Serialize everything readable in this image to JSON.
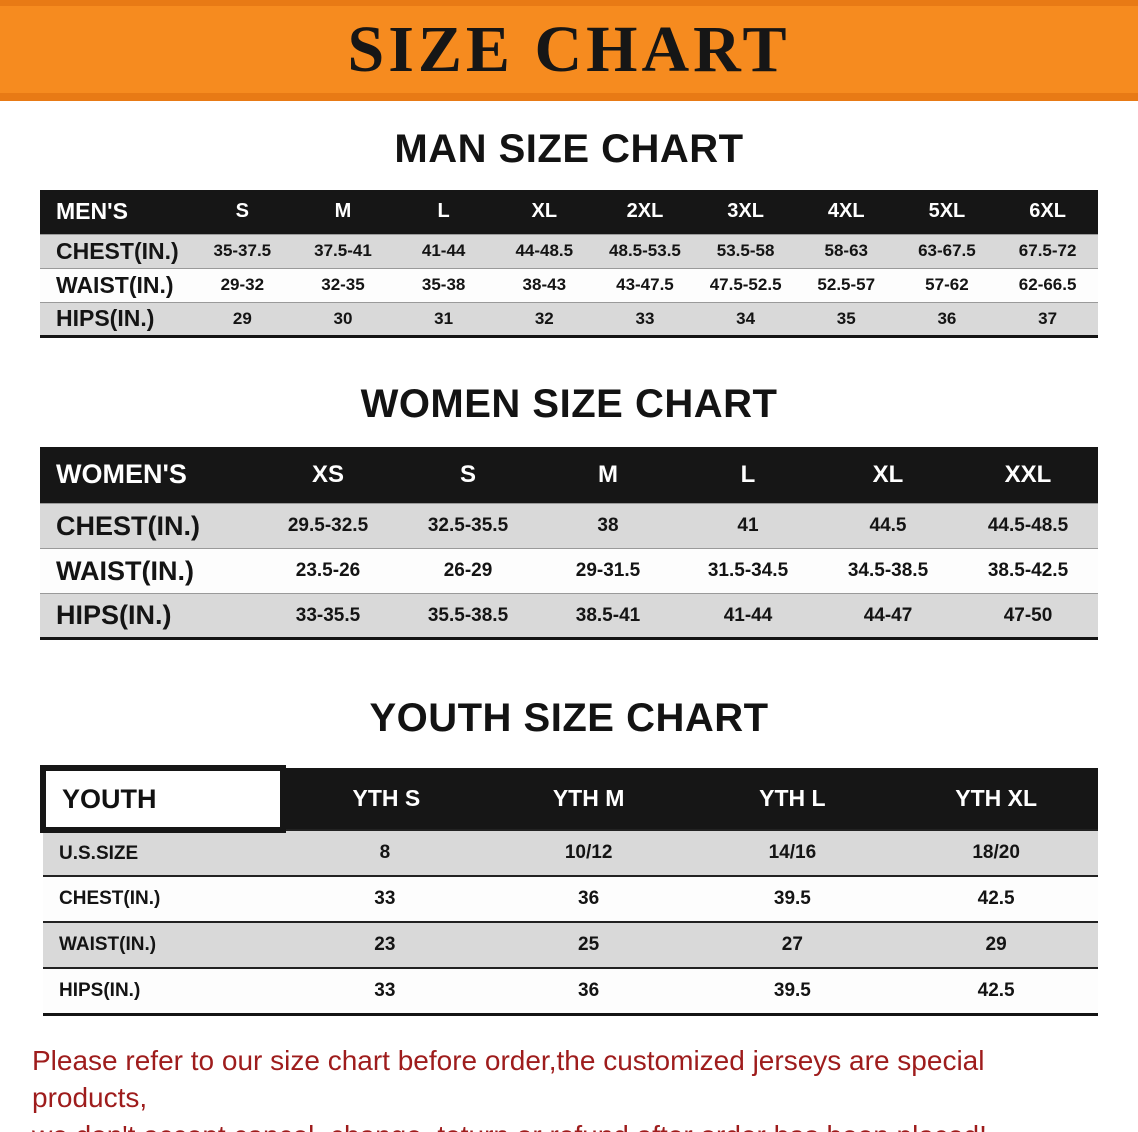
{
  "banner": {
    "title": "SIZE CHART"
  },
  "colors": {
    "banner_bg": "#f68b1f",
    "banner_edge": "#e87a15",
    "header_bg": "#161616",
    "stripe": "#d9d9d9",
    "footer_text": "#9e1c1c"
  },
  "sections": [
    {
      "heading": "MAN SIZE CHART",
      "table": {
        "label": "MEN'S",
        "columns": [
          "S",
          "M",
          "L",
          "XL",
          "2XL",
          "3XL",
          "4XL",
          "5XL",
          "6XL"
        ],
        "rows": [
          {
            "label": "CHEST(IN.)",
            "values": [
              "35-37.5",
              "37.5-41",
              "41-44",
              "44-48.5",
              "48.5-53.5",
              "53.5-58",
              "58-63",
              "63-67.5",
              "67.5-72"
            ]
          },
          {
            "label": "WAIST(IN.)",
            "values": [
              "29-32",
              "32-35",
              "35-38",
              "38-43",
              "43-47.5",
              "47.5-52.5",
              "52.5-57",
              "57-62",
              "62-66.5"
            ]
          },
          {
            "label": "HIPS(IN.)",
            "values": [
              "29",
              "30",
              "31",
              "32",
              "33",
              "34",
              "35",
              "36",
              "37"
            ]
          }
        ]
      }
    },
    {
      "heading": "WOMEN SIZE CHART",
      "table": {
        "label": "WOMEN'S",
        "columns": [
          "XS",
          "S",
          "M",
          "L",
          "XL",
          "XXL"
        ],
        "rows": [
          {
            "label": "CHEST(IN.)",
            "values": [
              "29.5-32.5",
              "32.5-35.5",
              "38",
              "41",
              "44.5",
              "44.5-48.5"
            ]
          },
          {
            "label": "WAIST(IN.)",
            "values": [
              "23.5-26",
              "26-29",
              "29-31.5",
              "31.5-34.5",
              "34.5-38.5",
              "38.5-42.5"
            ]
          },
          {
            "label": "HIPS(IN.)",
            "values": [
              "33-35.5",
              "35.5-38.5",
              "38.5-41",
              "41-44",
              "44-47",
              "47-50"
            ]
          }
        ]
      }
    },
    {
      "heading": "YOUTH SIZE CHART",
      "table": {
        "label": "YOUTH",
        "columns": [
          "YTH S",
          "YTH M",
          "YTH L",
          "YTH XL"
        ],
        "rows": [
          {
            "label": "U.S.SIZE",
            "values": [
              "8",
              "10/12",
              "14/16",
              "18/20"
            ]
          },
          {
            "label": "CHEST(IN.)",
            "values": [
              "33",
              "36",
              "39.5",
              "42.5"
            ]
          },
          {
            "label": "WAIST(IN.)",
            "values": [
              "23",
              "25",
              "27",
              "29"
            ]
          },
          {
            "label": "HIPS(IN.)",
            "values": [
              "33",
              "36",
              "39.5",
              "42.5"
            ]
          }
        ]
      }
    }
  ],
  "footer": {
    "line1": "Please refer to our size chart before order,the customized jerseys are special products,",
    "line2": "we don't accept cancel, change, teturn or refund after order has been placed!"
  }
}
